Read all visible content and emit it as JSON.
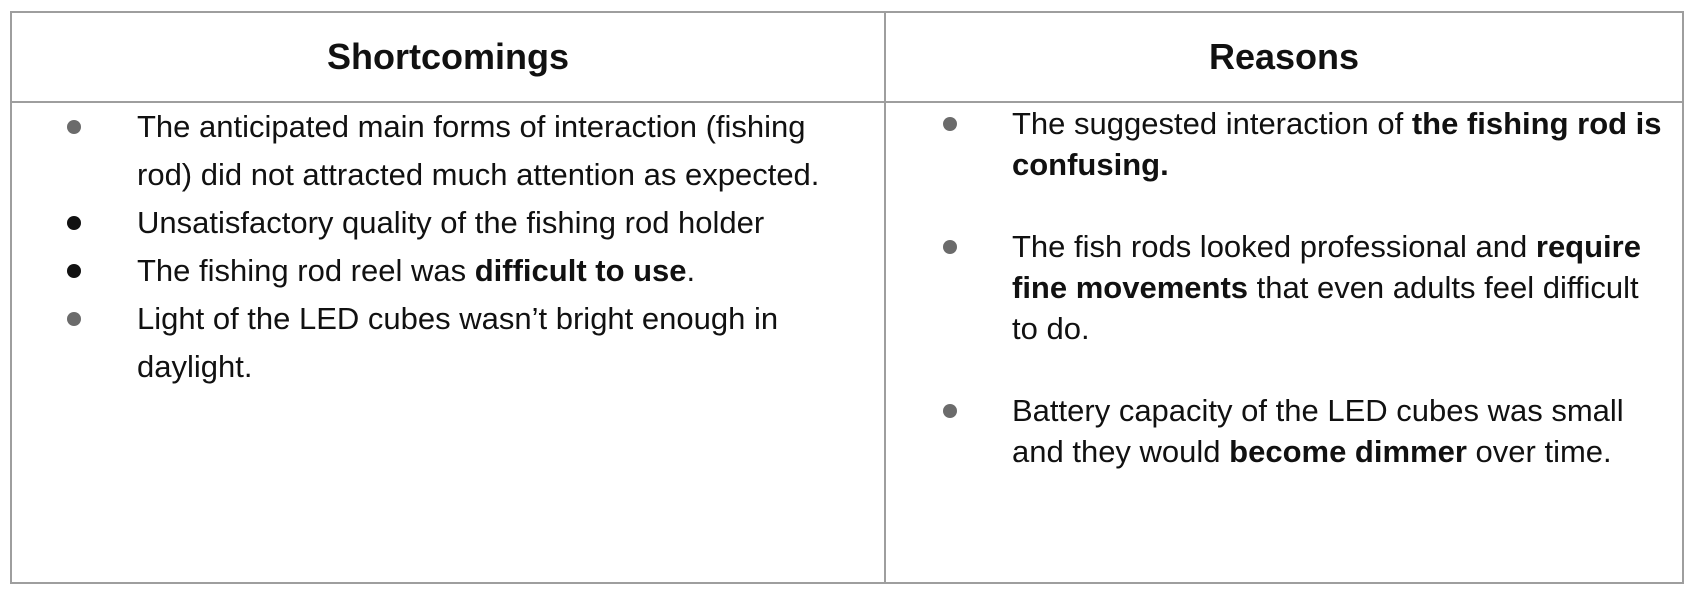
{
  "colors": {
    "border": "#9e9e9e",
    "bullet_gray": "#6b6b6b",
    "bullet_black": "#111111",
    "text": "#111111"
  },
  "table": {
    "headers": {
      "left": "Shortcomings",
      "right": "Reasons"
    },
    "shortcomings": [
      {
        "bullet": "gray",
        "before": "The anticipated main forms of interaction (fishing rod) did not attracted much attention as expected.",
        "bold": "",
        "after": ""
      },
      {
        "bullet": "black",
        "before": "Unsatisfactory quality of the fishing rod holder",
        "bold": "",
        "after": ""
      },
      {
        "bullet": "black",
        "before": "The fishing rod reel was ",
        "bold": "difficult to use",
        "after": "."
      },
      {
        "bullet": "gray",
        "before": "Light of the LED cubes wasn’t bright enough in daylight.",
        "bold": "",
        "after": ""
      }
    ],
    "reasons": [
      {
        "bullet": "gray",
        "before": "The suggested interaction of ",
        "bold": "the fishing rod is confusing.",
        "after": ""
      },
      {
        "bullet": "gray",
        "before": "The fish rods looked professional and ",
        "bold": "require fine movements",
        "after": " that even adults feel difficult to do."
      },
      {
        "bullet": "gray",
        "before": "Battery capacity of the LED cubes was small and they would ",
        "bold": "become dimmer",
        "after": " over time."
      }
    ]
  }
}
